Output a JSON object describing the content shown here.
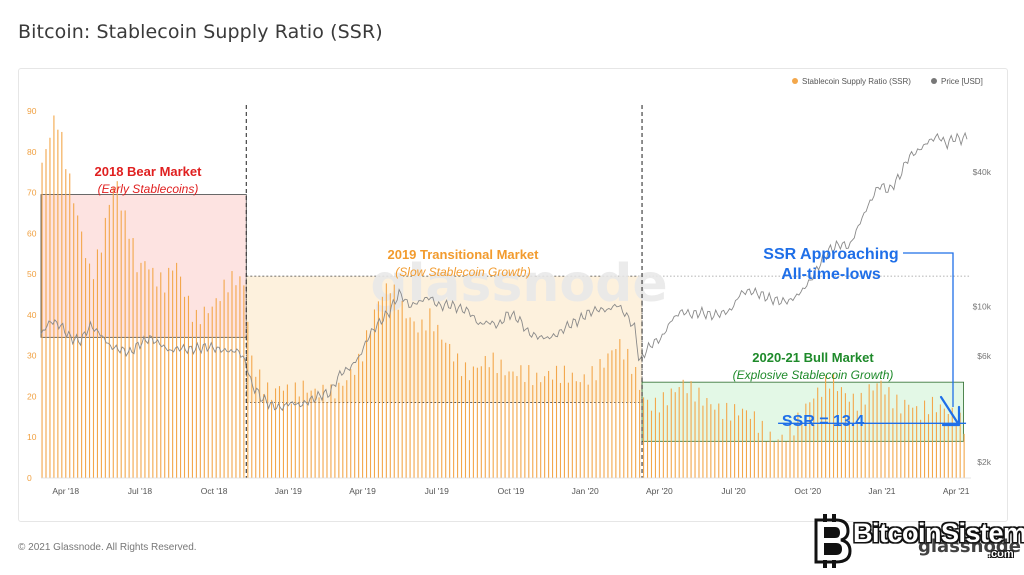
{
  "page": {
    "title": "Bitcoin: Stablecoin Supply Ratio (SSR)",
    "copyright": "© 2021 Glassnode. All Rights Reserved.",
    "watermark_center": "glassnode",
    "watermark_logo": "BitcoinSistemi",
    "watermark_logo_sub": ".com",
    "watermark_logo_overlay": "glassnode"
  },
  "colors": {
    "ssr_bar": "#f3a74b",
    "price_line": "#8a8a8a",
    "bear_fill": "#fde3e1",
    "transition_fill": "#fdf1dd",
    "bull_fill": "#e3f8e6",
    "bear_text": "#e02020",
    "transition_text": "#f29b2e",
    "bull_text": "#1e8a2a",
    "annotation_blue": "#1f6fe8"
  },
  "legend": [
    {
      "label": "Stablecoin Supply Ratio (SSR)",
      "color": "#f3a74b"
    },
    {
      "label": "Price [USD]",
      "color": "#777777"
    }
  ],
  "annotations": {
    "bear_title": "2018 Bear Market",
    "bear_sub": "(Early Stablecoins)",
    "transition_title": "2019 Transitional Market",
    "transition_sub": "(Slow Stablecoin Growth)",
    "bull_title": "2020-21 Bull Market",
    "bull_sub": "(Explosive Stablecoin Growth)",
    "approach_line1": "SSR Approaching",
    "approach_line2": "All-time-lows",
    "ssr_value": "SSR = 13.4"
  },
  "chart_data": {
    "type": "bar",
    "title": "Bitcoin: Stablecoin Supply Ratio (SSR)",
    "x_tick_labels": [
      "Apr '18",
      "Jul '18",
      "Oct '18",
      "Jan '19",
      "Apr '19",
      "Jul '19",
      "Oct '19",
      "Jan '20",
      "Apr '20",
      "Jul '20",
      "Oct '20",
      "Jan '21",
      "Apr '21"
    ],
    "y_left": {
      "ticks": [
        0,
        10,
        20,
        30,
        40,
        50,
        60,
        70,
        80,
        90
      ],
      "range": [
        0,
        90
      ]
    },
    "y_right": {
      "scale": "log",
      "tick_labels": [
        "$2k",
        "$6k",
        "$10k",
        "$40k"
      ],
      "tick_values": [
        2000,
        6000,
        10000,
        40000
      ],
      "range": [
        1700,
        75000
      ]
    },
    "x_range_months": [
      0.0,
      37.6
    ],
    "regime_boundaries_months": [
      8.3,
      24.3
    ],
    "regime_boxes": [
      {
        "name": "2018 Bear Market",
        "x": [
          0.0,
          8.3
        ],
        "y": [
          34.5,
          69.5
        ]
      },
      {
        "name": "2019 Transitional Market",
        "x": [
          8.3,
          24.3
        ],
        "y": [
          18.5,
          49.5
        ]
      },
      {
        "name": "2020-21 Bull Market",
        "x": [
          24.3,
          37.3
        ],
        "y": [
          9.0,
          23.5
        ]
      }
    ],
    "ssr_line_value": 13.4,
    "series": [
      {
        "name": "Stablecoin Supply Ratio (SSR)",
        "kind": "bar",
        "points": [
          [
            0.0,
            75
          ],
          [
            0.3,
            82
          ],
          [
            0.6,
            88
          ],
          [
            0.9,
            80
          ],
          [
            1.2,
            72
          ],
          [
            1.6,
            62
          ],
          [
            2.0,
            50
          ],
          [
            2.4,
            56
          ],
          [
            2.8,
            68
          ],
          [
            3.0,
            72
          ],
          [
            3.3,
            64
          ],
          [
            3.6,
            60
          ],
          [
            3.9,
            52
          ],
          [
            4.2,
            55
          ],
          [
            4.6,
            50
          ],
          [
            5.0,
            47
          ],
          [
            5.4,
            52
          ],
          [
            5.8,
            44
          ],
          [
            6.2,
            39
          ],
          [
            6.6,
            42
          ],
          [
            7.0,
            44
          ],
          [
            7.4,
            47
          ],
          [
            7.8,
            48
          ],
          [
            8.2,
            46
          ],
          [
            8.5,
            28
          ],
          [
            8.9,
            24
          ],
          [
            9.3,
            22
          ],
          [
            9.7,
            24
          ],
          [
            10.1,
            20
          ],
          [
            10.5,
            21
          ],
          [
            10.9,
            20
          ],
          [
            11.3,
            21
          ],
          [
            11.7,
            22
          ],
          [
            12.1,
            24
          ],
          [
            12.5,
            26
          ],
          [
            12.9,
            28
          ],
          [
            13.3,
            36
          ],
          [
            13.7,
            44
          ],
          [
            14.1,
            48
          ],
          [
            14.5,
            44
          ],
          [
            14.9,
            40
          ],
          [
            15.3,
            36
          ],
          [
            15.7,
            38
          ],
          [
            16.1,
            34
          ],
          [
            16.5,
            32
          ],
          [
            16.9,
            29
          ],
          [
            17.3,
            27
          ],
          [
            17.7,
            28
          ],
          [
            18.1,
            28
          ],
          [
            18.5,
            26
          ],
          [
            18.9,
            25
          ],
          [
            19.3,
            27
          ],
          [
            19.7,
            27
          ],
          [
            20.1,
            25
          ],
          [
            20.5,
            25
          ],
          [
            20.9,
            24
          ],
          [
            21.3,
            24
          ],
          [
            21.7,
            24
          ],
          [
            22.1,
            26
          ],
          [
            22.5,
            28
          ],
          [
            22.9,
            30
          ],
          [
            23.3,
            32
          ],
          [
            23.7,
            28
          ],
          [
            24.1,
            24
          ],
          [
            24.3,
            20
          ],
          [
            24.7,
            19
          ],
          [
            25.1,
            20
          ],
          [
            25.5,
            21
          ],
          [
            25.9,
            22
          ],
          [
            26.3,
            20
          ],
          [
            26.7,
            19
          ],
          [
            27.1,
            19
          ],
          [
            27.5,
            18
          ],
          [
            27.9,
            17
          ],
          [
            28.3,
            16
          ],
          [
            28.7,
            14
          ],
          [
            29.1,
            11
          ],
          [
            29.5,
            10
          ],
          [
            29.9,
            11
          ],
          [
            30.3,
            13
          ],
          [
            30.7,
            15
          ],
          [
            31.1,
            18
          ],
          [
            31.5,
            20
          ],
          [
            31.9,
            24
          ],
          [
            32.3,
            23
          ],
          [
            32.7,
            21
          ],
          [
            33.1,
            19
          ],
          [
            33.5,
            21
          ],
          [
            33.9,
            22
          ],
          [
            34.3,
            19
          ],
          [
            34.7,
            18
          ],
          [
            35.1,
            20
          ],
          [
            35.5,
            17
          ],
          [
            35.9,
            18
          ],
          [
            36.3,
            16
          ],
          [
            36.7,
            15
          ],
          [
            37.0,
            14
          ],
          [
            37.3,
            13.4
          ]
        ]
      },
      {
        "name": "Price [USD]",
        "kind": "line",
        "axis": "right",
        "points": [
          [
            0.0,
            7500
          ],
          [
            0.4,
            8600
          ],
          [
            0.8,
            8200
          ],
          [
            1.2,
            7200
          ],
          [
            1.6,
            7000
          ],
          [
            2.0,
            8200
          ],
          [
            2.4,
            7500
          ],
          [
            2.8,
            6600
          ],
          [
            3.2,
            6400
          ],
          [
            3.6,
            6200
          ],
          [
            4.0,
            6800
          ],
          [
            4.4,
            7200
          ],
          [
            4.8,
            6800
          ],
          [
            5.2,
            6300
          ],
          [
            5.6,
            6500
          ],
          [
            6.0,
            6400
          ],
          [
            6.4,
            6500
          ],
          [
            6.8,
            6600
          ],
          [
            7.2,
            6400
          ],
          [
            7.6,
            6300
          ],
          [
            8.0,
            6300
          ],
          [
            8.3,
            5500
          ],
          [
            8.5,
            4500
          ],
          [
            8.9,
            3900
          ],
          [
            9.3,
            3600
          ],
          [
            9.7,
            3500
          ],
          [
            10.1,
            3700
          ],
          [
            10.5,
            3600
          ],
          [
            10.9,
            3800
          ],
          [
            11.3,
            4000
          ],
          [
            11.7,
            4100
          ],
          [
            12.1,
            5000
          ],
          [
            12.5,
            5300
          ],
          [
            12.9,
            6000
          ],
          [
            13.3,
            7500
          ],
          [
            13.7,
            8500
          ],
          [
            14.1,
            9500
          ],
          [
            14.5,
            11500
          ],
          [
            14.9,
            10000
          ],
          [
            15.3,
            10500
          ],
          [
            15.7,
            11000
          ],
          [
            16.1,
            10000
          ],
          [
            16.5,
            10200
          ],
          [
            16.9,
            9800
          ],
          [
            17.3,
            9500
          ],
          [
            17.7,
            8300
          ],
          [
            18.1,
            8500
          ],
          [
            18.5,
            8200
          ],
          [
            18.9,
            9300
          ],
          [
            19.3,
            8800
          ],
          [
            19.7,
            7600
          ],
          [
            20.1,
            7300
          ],
          [
            20.5,
            7200
          ],
          [
            20.9,
            7500
          ],
          [
            21.3,
            8200
          ],
          [
            21.7,
            8600
          ],
          [
            22.1,
            9300
          ],
          [
            22.5,
            9700
          ],
          [
            22.9,
            9600
          ],
          [
            23.3,
            10200
          ],
          [
            23.7,
            9000
          ],
          [
            24.0,
            8000
          ],
          [
            24.2,
            5500
          ],
          [
            24.4,
            6200
          ],
          [
            24.7,
            6800
          ],
          [
            25.1,
            7200
          ],
          [
            25.5,
            8700
          ],
          [
            25.9,
            9500
          ],
          [
            26.3,
            9200
          ],
          [
            26.7,
            9400
          ],
          [
            27.1,
            9100
          ],
          [
            27.5,
            9300
          ],
          [
            27.9,
            9600
          ],
          [
            28.3,
            11500
          ],
          [
            28.7,
            11700
          ],
          [
            29.1,
            11300
          ],
          [
            29.5,
            10800
          ],
          [
            29.9,
            10500
          ],
          [
            30.3,
            10600
          ],
          [
            30.7,
            11500
          ],
          [
            31.1,
            13000
          ],
          [
            31.5,
            15500
          ],
          [
            31.9,
            18000
          ],
          [
            32.3,
            19000
          ],
          [
            32.7,
            18500
          ],
          [
            33.1,
            23500
          ],
          [
            33.5,
            29000
          ],
          [
            33.9,
            35000
          ],
          [
            34.3,
            33000
          ],
          [
            34.7,
            38000
          ],
          [
            35.1,
            47000
          ],
          [
            35.5,
            50000
          ],
          [
            35.9,
            55000
          ],
          [
            36.3,
            58000
          ],
          [
            36.6,
            53000
          ],
          [
            36.9,
            57000
          ],
          [
            37.2,
            56000
          ],
          [
            37.5,
            58000
          ]
        ]
      }
    ]
  }
}
